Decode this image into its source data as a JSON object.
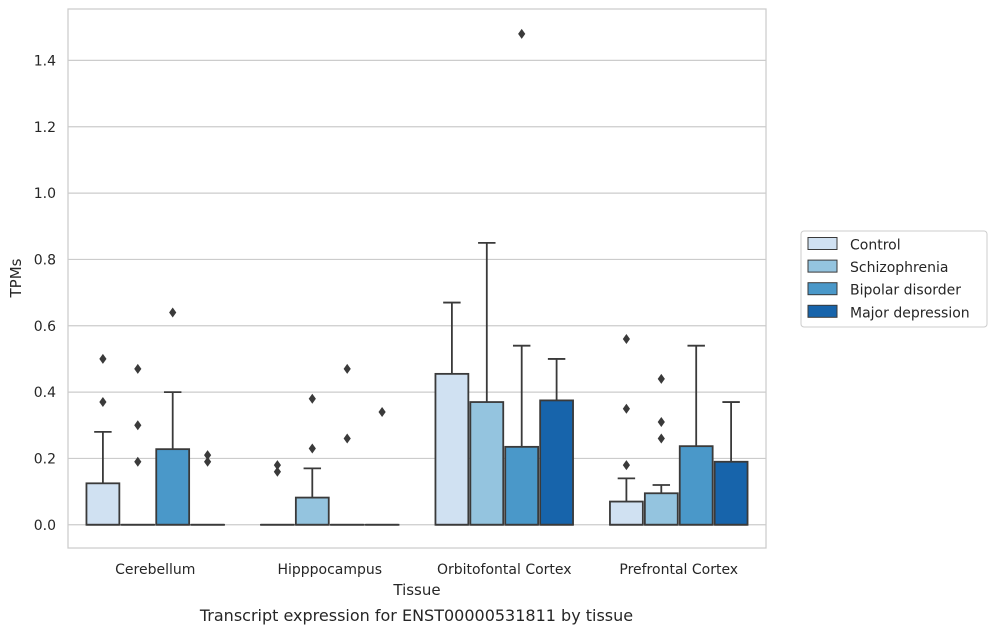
{
  "caption": "Transcript expression for ENST00000531811 by tissue",
  "chart_data": {
    "type": "box",
    "xlabel": "Tissue",
    "ylabel": "TPMs",
    "ylim": [
      -0.07,
      1.555
    ],
    "yticks": [
      0.0,
      0.2,
      0.4,
      0.6,
      0.8,
      1.0,
      1.2,
      1.4
    ],
    "ytick_labels": [
      "0.0",
      "0.2",
      "0.4",
      "0.6",
      "0.8",
      "1.0",
      "1.2",
      "1.4"
    ],
    "grid": "horizontal",
    "legend_position": "right",
    "categories": [
      "Cerebellum",
      "Hipppocampus",
      "Orbitofontal Cortex",
      "Prefrontal Cortex"
    ],
    "series": [
      {
        "name": "Control",
        "color": "#d0e1f2",
        "boxes": [
          {
            "q1": 0,
            "median": 0,
            "q3": 0.125,
            "whisker_low": 0,
            "whisker_high": 0.28,
            "outliers": [
              0.37,
              0.5
            ]
          },
          {
            "q1": 0,
            "median": 0,
            "q3": 0,
            "whisker_low": 0,
            "whisker_high": 0,
            "outliers": [
              0.16,
              0.18
            ]
          },
          {
            "q1": 0,
            "median": 0,
            "q3": 0.455,
            "whisker_low": 0,
            "whisker_high": 0.67,
            "outliers": []
          },
          {
            "q1": 0,
            "median": 0,
            "q3": 0.07,
            "whisker_low": 0,
            "whisker_high": 0.14,
            "outliers": [
              0.18,
              0.35,
              0.56
            ]
          }
        ]
      },
      {
        "name": "Schizophrenia",
        "color": "#94c4df",
        "boxes": [
          {
            "q1": 0,
            "median": 0,
            "q3": 0,
            "whisker_low": 0,
            "whisker_high": 0,
            "outliers": [
              0.19,
              0.3,
              0.47
            ]
          },
          {
            "q1": 0,
            "median": 0,
            "q3": 0.082,
            "whisker_low": 0,
            "whisker_high": 0.17,
            "outliers": [
              0.23,
              0.38
            ]
          },
          {
            "q1": 0,
            "median": 0,
            "q3": 0.37,
            "whisker_low": 0,
            "whisker_high": 0.85,
            "outliers": []
          },
          {
            "q1": 0,
            "median": 0,
            "q3": 0.095,
            "whisker_low": 0,
            "whisker_high": 0.12,
            "outliers": [
              0.26,
              0.31,
              0.44
            ]
          }
        ]
      },
      {
        "name": "Bipolar disorder",
        "color": "#4a98c9",
        "boxes": [
          {
            "q1": 0,
            "median": 0,
            "q3": 0.228,
            "whisker_low": 0,
            "whisker_high": 0.4,
            "outliers": [
              0.64
            ]
          },
          {
            "q1": 0,
            "median": 0,
            "q3": 0,
            "whisker_low": 0,
            "whisker_high": 0,
            "outliers": [
              0.26,
              0.47
            ]
          },
          {
            "q1": 0,
            "median": 0,
            "q3": 0.235,
            "whisker_low": 0,
            "whisker_high": 0.54,
            "outliers": [
              1.48
            ]
          },
          {
            "q1": 0,
            "median": 0,
            "q3": 0.237,
            "whisker_low": 0,
            "whisker_high": 0.54,
            "outliers": []
          }
        ]
      },
      {
        "name": "Major depression",
        "color": "#1764ab",
        "boxes": [
          {
            "q1": 0,
            "median": 0,
            "q3": 0,
            "whisker_low": 0,
            "whisker_high": 0,
            "outliers": [
              0.19,
              0.21
            ]
          },
          {
            "q1": 0,
            "median": 0,
            "q3": 0,
            "whisker_low": 0,
            "whisker_high": 0,
            "outliers": [
              0.34
            ]
          },
          {
            "q1": 0,
            "median": 0,
            "q3": 0.375,
            "whisker_low": 0,
            "whisker_high": 0.5,
            "outliers": []
          },
          {
            "q1": 0,
            "median": 0,
            "q3": 0.19,
            "whisker_low": 0,
            "whisker_high": 0.37,
            "outliers": []
          }
        ]
      }
    ]
  }
}
